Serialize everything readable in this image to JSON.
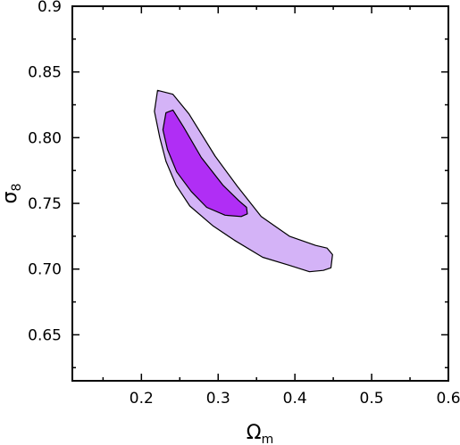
{
  "chart_data": {
    "type": "contour",
    "xlabel": "Ω",
    "xlabel_sub": "m",
    "ylabel": "σ",
    "ylabel_sub": "8",
    "xlim": [
      0.11,
      0.6
    ],
    "ylim": [
      0.615,
      0.9
    ],
    "x_ticks": [
      0.2,
      0.3,
      0.4,
      0.5,
      0.6
    ],
    "x_tick_labels": [
      "0.2",
      "0.3",
      "0.4",
      "0.5",
      "0.6"
    ],
    "y_ticks": [
      0.65,
      0.7,
      0.75,
      0.8,
      0.85,
      0.9
    ],
    "y_tick_labels": [
      "0.65",
      "0.70",
      "0.75",
      "0.80",
      "0.85",
      "0.9"
    ],
    "grid": false,
    "legend": "none",
    "contours": [
      {
        "level": "outer",
        "fill": "#d4b3f7",
        "stroke": "#000000",
        "points": [
          [
            0.221,
            0.836
          ],
          [
            0.241,
            0.833
          ],
          [
            0.262,
            0.818
          ],
          [
            0.296,
            0.786
          ],
          [
            0.325,
            0.763
          ],
          [
            0.356,
            0.74
          ],
          [
            0.393,
            0.725
          ],
          [
            0.427,
            0.718
          ],
          [
            0.442,
            0.716
          ],
          [
            0.449,
            0.711
          ],
          [
            0.447,
            0.701
          ],
          [
            0.437,
            0.699
          ],
          [
            0.419,
            0.698
          ],
          [
            0.392,
            0.703
          ],
          [
            0.358,
            0.709
          ],
          [
            0.321,
            0.722
          ],
          [
            0.293,
            0.733
          ],
          [
            0.263,
            0.748
          ],
          [
            0.245,
            0.764
          ],
          [
            0.232,
            0.782
          ],
          [
            0.224,
            0.8
          ],
          [
            0.217,
            0.82
          ]
        ]
      },
      {
        "level": "inner",
        "fill": "#b02ef5",
        "stroke": "#000000",
        "points": [
          [
            0.232,
            0.819
          ],
          [
            0.241,
            0.821
          ],
          [
            0.255,
            0.808
          ],
          [
            0.278,
            0.785
          ],
          [
            0.306,
            0.764
          ],
          [
            0.327,
            0.752
          ],
          [
            0.337,
            0.747
          ],
          [
            0.338,
            0.742
          ],
          [
            0.33,
            0.74
          ],
          [
            0.309,
            0.741
          ],
          [
            0.285,
            0.747
          ],
          [
            0.265,
            0.759
          ],
          [
            0.246,
            0.774
          ],
          [
            0.234,
            0.791
          ],
          [
            0.228,
            0.806
          ]
        ]
      }
    ]
  }
}
